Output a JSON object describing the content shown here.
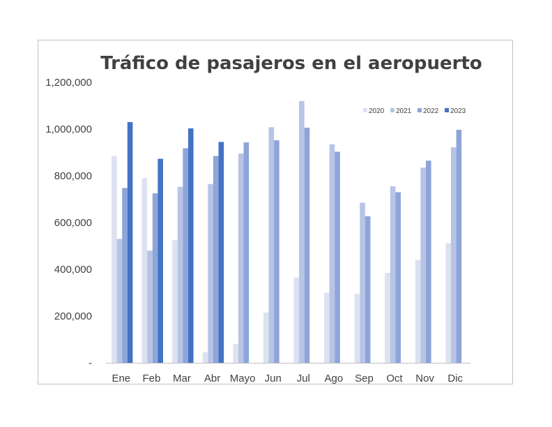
{
  "chart_data": {
    "type": "bar",
    "title": "Tráfico de pasajeros en el aeropuerto",
    "xlabel": "",
    "ylabel": "",
    "ylim": [
      0,
      1200000
    ],
    "yticks": [
      0,
      200000,
      400000,
      600000,
      800000,
      1000000,
      1200000
    ],
    "ytick_labels": [
      "-",
      "200,000",
      "400,000",
      "600,000",
      "800,000",
      "1,000,000",
      "1,200,000"
    ],
    "grid": false,
    "legend_position": "top-right",
    "categories": [
      "Ene",
      "Feb",
      "Mar",
      "Abr",
      "Mayo",
      "Jun",
      "Jul",
      "Ago",
      "Sep",
      "Oct",
      "Nov",
      "Dic"
    ],
    "series": [
      {
        "name": "2020",
        "color": "#dde2f1",
        "values": [
          885000,
          790000,
          525000,
          45000,
          80000,
          215000,
          365000,
          300000,
          295000,
          385000,
          440000,
          512000
        ]
      },
      {
        "name": "2021",
        "color": "#b7c4e6",
        "values": [
          530000,
          480000,
          753000,
          765000,
          895000,
          1008000,
          1120000,
          935000,
          685000,
          755000,
          835000,
          922000
        ]
      },
      {
        "name": "2022",
        "color": "#8ea5d9",
        "values": [
          748000,
          725000,
          918000,
          885000,
          943000,
          952000,
          1006000,
          903000,
          627000,
          730000,
          865000,
          997000
        ]
      },
      {
        "name": "2023",
        "color": "#4472c4",
        "values": [
          1030000,
          873000,
          1003000,
          945000,
          null,
          null,
          null,
          null,
          null,
          null,
          null,
          null
        ]
      }
    ]
  }
}
